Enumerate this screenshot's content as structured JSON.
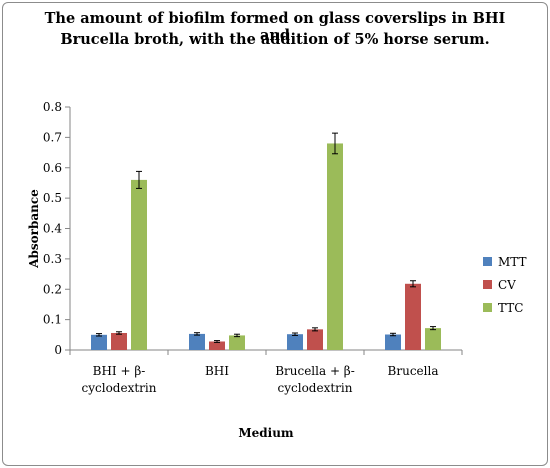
{
  "chart_data": {
    "type": "bar",
    "title_line1": "The amount of biofilm formed on glass coverslips in BHI and",
    "title_line2": "Brucella broth, with the addition of 5% horse serum.",
    "xlabel": "Medium",
    "ylabel": "Absorbance",
    "ylim": [
      0,
      0.8
    ],
    "yticks": [
      "0",
      "0.1",
      "0.2",
      "0.3",
      "0.4",
      "0.5",
      "0.6",
      "0.7",
      "0.8"
    ],
    "categories": [
      [
        "BHI + β-",
        "cyclodextrin"
      ],
      [
        "BHI"
      ],
      [
        "Brucella + β-",
        "cyclodextrin"
      ],
      [
        "Brucella"
      ]
    ],
    "series": [
      {
        "name": "MTT",
        "color": "#4f81bd",
        "values": [
          0.05,
          0.053,
          0.052,
          0.051
        ],
        "errors": [
          0.004,
          0.004,
          0.004,
          0.004
        ]
      },
      {
        "name": "CV",
        "color": "#c0504d",
        "values": [
          0.056,
          0.028,
          0.068,
          0.218
        ],
        "errors": [
          0.004,
          0.003,
          0.005,
          0.01
        ]
      },
      {
        "name": "TTC",
        "color": "#9bbb59",
        "values": [
          0.56,
          0.048,
          0.68,
          0.072
        ],
        "errors": [
          0.028,
          0.004,
          0.034,
          0.005
        ]
      }
    ],
    "legend_position": "right",
    "grid": false
  }
}
